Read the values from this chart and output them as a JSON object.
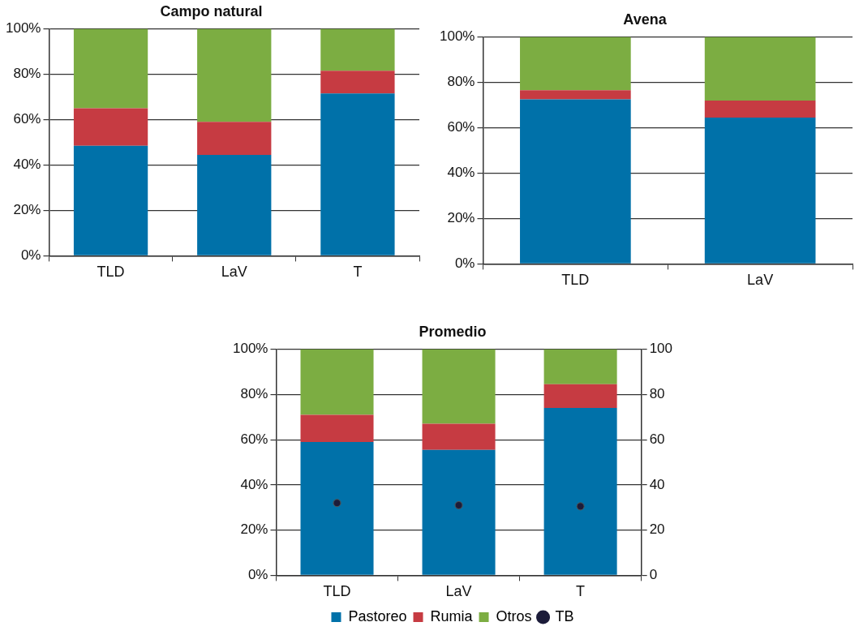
{
  "chart_data": [
    {
      "type": "bar",
      "title": "Campo natural",
      "categories": [
        "TLD",
        "LaV",
        "T"
      ],
      "stacked": true,
      "ylim": [
        0,
        100
      ],
      "yticks": [
        {
          "value": 0,
          "label": "0%"
        },
        {
          "value": 20,
          "label": "20%"
        },
        {
          "value": 40,
          "label": "40%"
        },
        {
          "value": 60,
          "label": "60%"
        },
        {
          "value": 80,
          "label": "80%"
        },
        {
          "value": 100,
          "label": "100%"
        }
      ],
      "grid": "y",
      "series": [
        {
          "color": "#0071a9",
          "values": [
            48.5,
            44.5,
            71.5
          ]
        },
        {
          "color": "#c63b42",
          "values": [
            16.5,
            14.5,
            10
          ]
        },
        {
          "color": "#7cad42",
          "values": [
            35,
            41,
            18.5
          ]
        }
      ]
    },
    {
      "type": "bar",
      "title": "Avena",
      "categories": [
        "TLD",
        "LaV"
      ],
      "stacked": true,
      "ylim": [
        0,
        100
      ],
      "yticks": [
        {
          "value": 0,
          "label": "0%"
        },
        {
          "value": 20,
          "label": "20%"
        },
        {
          "value": 40,
          "label": "40%"
        },
        {
          "value": 60,
          "label": "60%"
        },
        {
          "value": 80,
          "label": "80%"
        },
        {
          "value": 100,
          "label": "100%"
        }
      ],
      "grid": "y",
      "series": [
        {
          "color": "#0071a9",
          "values": [
            72.5,
            64.5
          ]
        },
        {
          "color": "#c63b42",
          "values": [
            4,
            7.5
          ]
        },
        {
          "color": "#7cad42",
          "values": [
            23.5,
            28
          ]
        }
      ]
    },
    {
      "type": "bar",
      "title": "Promedio",
      "categories": [
        "TLD",
        "LaV",
        "T"
      ],
      "stacked": true,
      "ylim": [
        0,
        100
      ],
      "yticks": [
        {
          "value": 0,
          "label": "0%"
        },
        {
          "value": 20,
          "label": "20%"
        },
        {
          "value": 40,
          "label": "40%"
        },
        {
          "value": 60,
          "label": "60%"
        },
        {
          "value": 80,
          "label": "80%"
        },
        {
          "value": 100,
          "label": "100%"
        }
      ],
      "y2lim": [
        0,
        100
      ],
      "y2ticks": [
        0,
        20,
        40,
        60,
        80,
        100
      ],
      "grid": "y",
      "legend": "bottom",
      "series": [
        {
          "name": "Pastoreo",
          "color": "#0071a9",
          "values": [
            59,
            55.5,
            74
          ]
        },
        {
          "name": "Rumia",
          "color": "#c63b42",
          "values": [
            12,
            11.5,
            10.5
          ]
        },
        {
          "name": "Otros",
          "color": "#7cad42",
          "values": [
            29,
            33,
            15.5
          ]
        },
        {
          "name": "TB",
          "type": "scatter",
          "axis": "y2",
          "marker": "circle",
          "color": "#1c1c3a",
          "x": [
            "TLD",
            "LaV",
            "T"
          ],
          "values": [
            32,
            31,
            30.5
          ]
        }
      ]
    }
  ]
}
